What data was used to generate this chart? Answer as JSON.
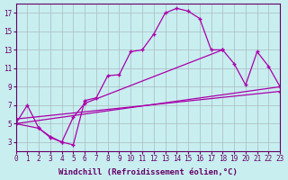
{
  "bg_color": "#c8eef0",
  "grid_color": "#aabbbb",
  "line_color": "#aa00aa",
  "xlabel": "Windchill (Refroidissement éolien,°C)",
  "xlim": [
    0,
    23
  ],
  "ylim": [
    2,
    18
  ],
  "xticks": [
    0,
    1,
    2,
    3,
    4,
    5,
    6,
    7,
    8,
    9,
    10,
    11,
    12,
    13,
    14,
    15,
    16,
    17,
    18,
    19,
    20,
    21,
    22,
    23
  ],
  "yticks": [
    3,
    5,
    7,
    9,
    11,
    13,
    15,
    17
  ],
  "series1_x": [
    0,
    1,
    2,
    3,
    4,
    5,
    6,
    7,
    8,
    9,
    10,
    11,
    12,
    13,
    14,
    15,
    16,
    17,
    18
  ],
  "series1_y": [
    5.0,
    7.0,
    4.5,
    3.5,
    3.0,
    2.7,
    7.5,
    7.8,
    10.2,
    10.3,
    12.8,
    13.0,
    14.7,
    17.0,
    17.5,
    17.2,
    16.4,
    13.0,
    13.0
  ],
  "series2_x": [
    0,
    2,
    3,
    4,
    5,
    6,
    18,
    19,
    20,
    21,
    22,
    23
  ],
  "series2_y": [
    5.0,
    4.5,
    3.6,
    3.0,
    5.7,
    7.2,
    13.0,
    11.5,
    9.2,
    12.8,
    11.2,
    9.0
  ],
  "series3_x": [
    0,
    23
  ],
  "series3_y": [
    5.0,
    9.0
  ],
  "series4_x": [
    0,
    23
  ],
  "series4_y": [
    5.5,
    8.5
  ],
  "tickfont_size": 5.5,
  "labelfont_size": 6.5,
  "font_color": "#660066"
}
